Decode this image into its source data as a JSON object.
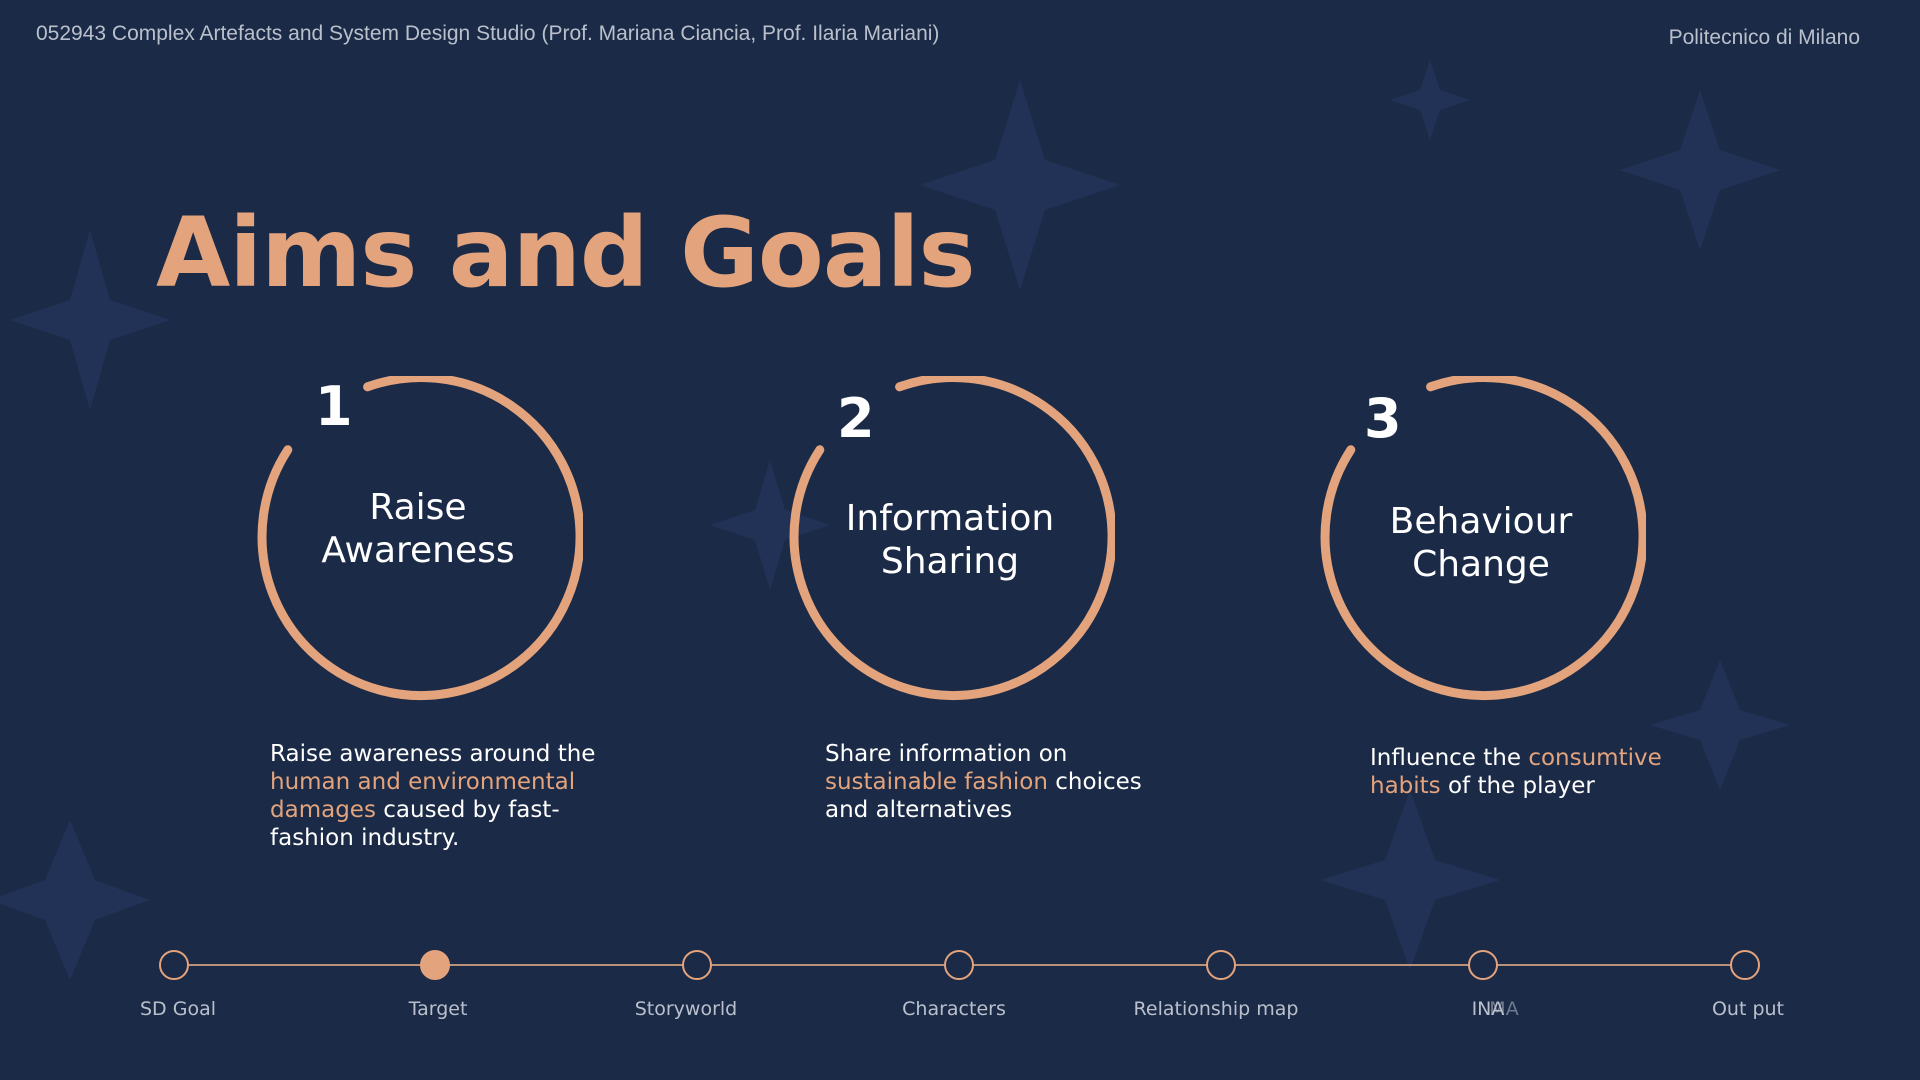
{
  "header": {
    "course": "052943 Complex Artefacts and System Design Studio (Prof. Mariana Ciancia, Prof. Ilaria Mariani)",
    "institution": "Politecnico di Milano"
  },
  "title": "Aims and Goals",
  "goals": [
    {
      "number": "1",
      "label_line1": "Raise",
      "label_line2": "Awareness",
      "desc": [
        {
          "text": "Raise awareness around the ",
          "accent": false
        },
        {
          "text": "human and environmental damages",
          "accent": true
        },
        {
          "text": " caused by fast-fashion industry.",
          "accent": false
        }
      ]
    },
    {
      "number": "2",
      "label_line1": "Information",
      "label_line2": "Sharing",
      "desc": [
        {
          "text": "Share information on ",
          "accent": false
        },
        {
          "text": "sustainable fashion",
          "accent": true
        },
        {
          "text": " choices and alternatives",
          "accent": false
        }
      ]
    },
    {
      "number": "3",
      "label_line1": "Behaviour",
      "label_line2": "Change",
      "desc": [
        {
          "text": "Influence the ",
          "accent": false
        },
        {
          "text": "consumtive habits",
          "accent": true
        },
        {
          "text": " of the player",
          "accent": false
        }
      ]
    }
  ],
  "timeline": {
    "steps": [
      "SD Goal",
      "Target",
      "Storyworld",
      "Characters",
      "Relationship map",
      "INA",
      "Out put"
    ],
    "active_step": "Target",
    "ghost_label": "MA"
  },
  "colors": {
    "background": "#1b2a46",
    "accent": "#e3a37c",
    "text": "#ffffff",
    "muted": "#b9c0cc"
  }
}
